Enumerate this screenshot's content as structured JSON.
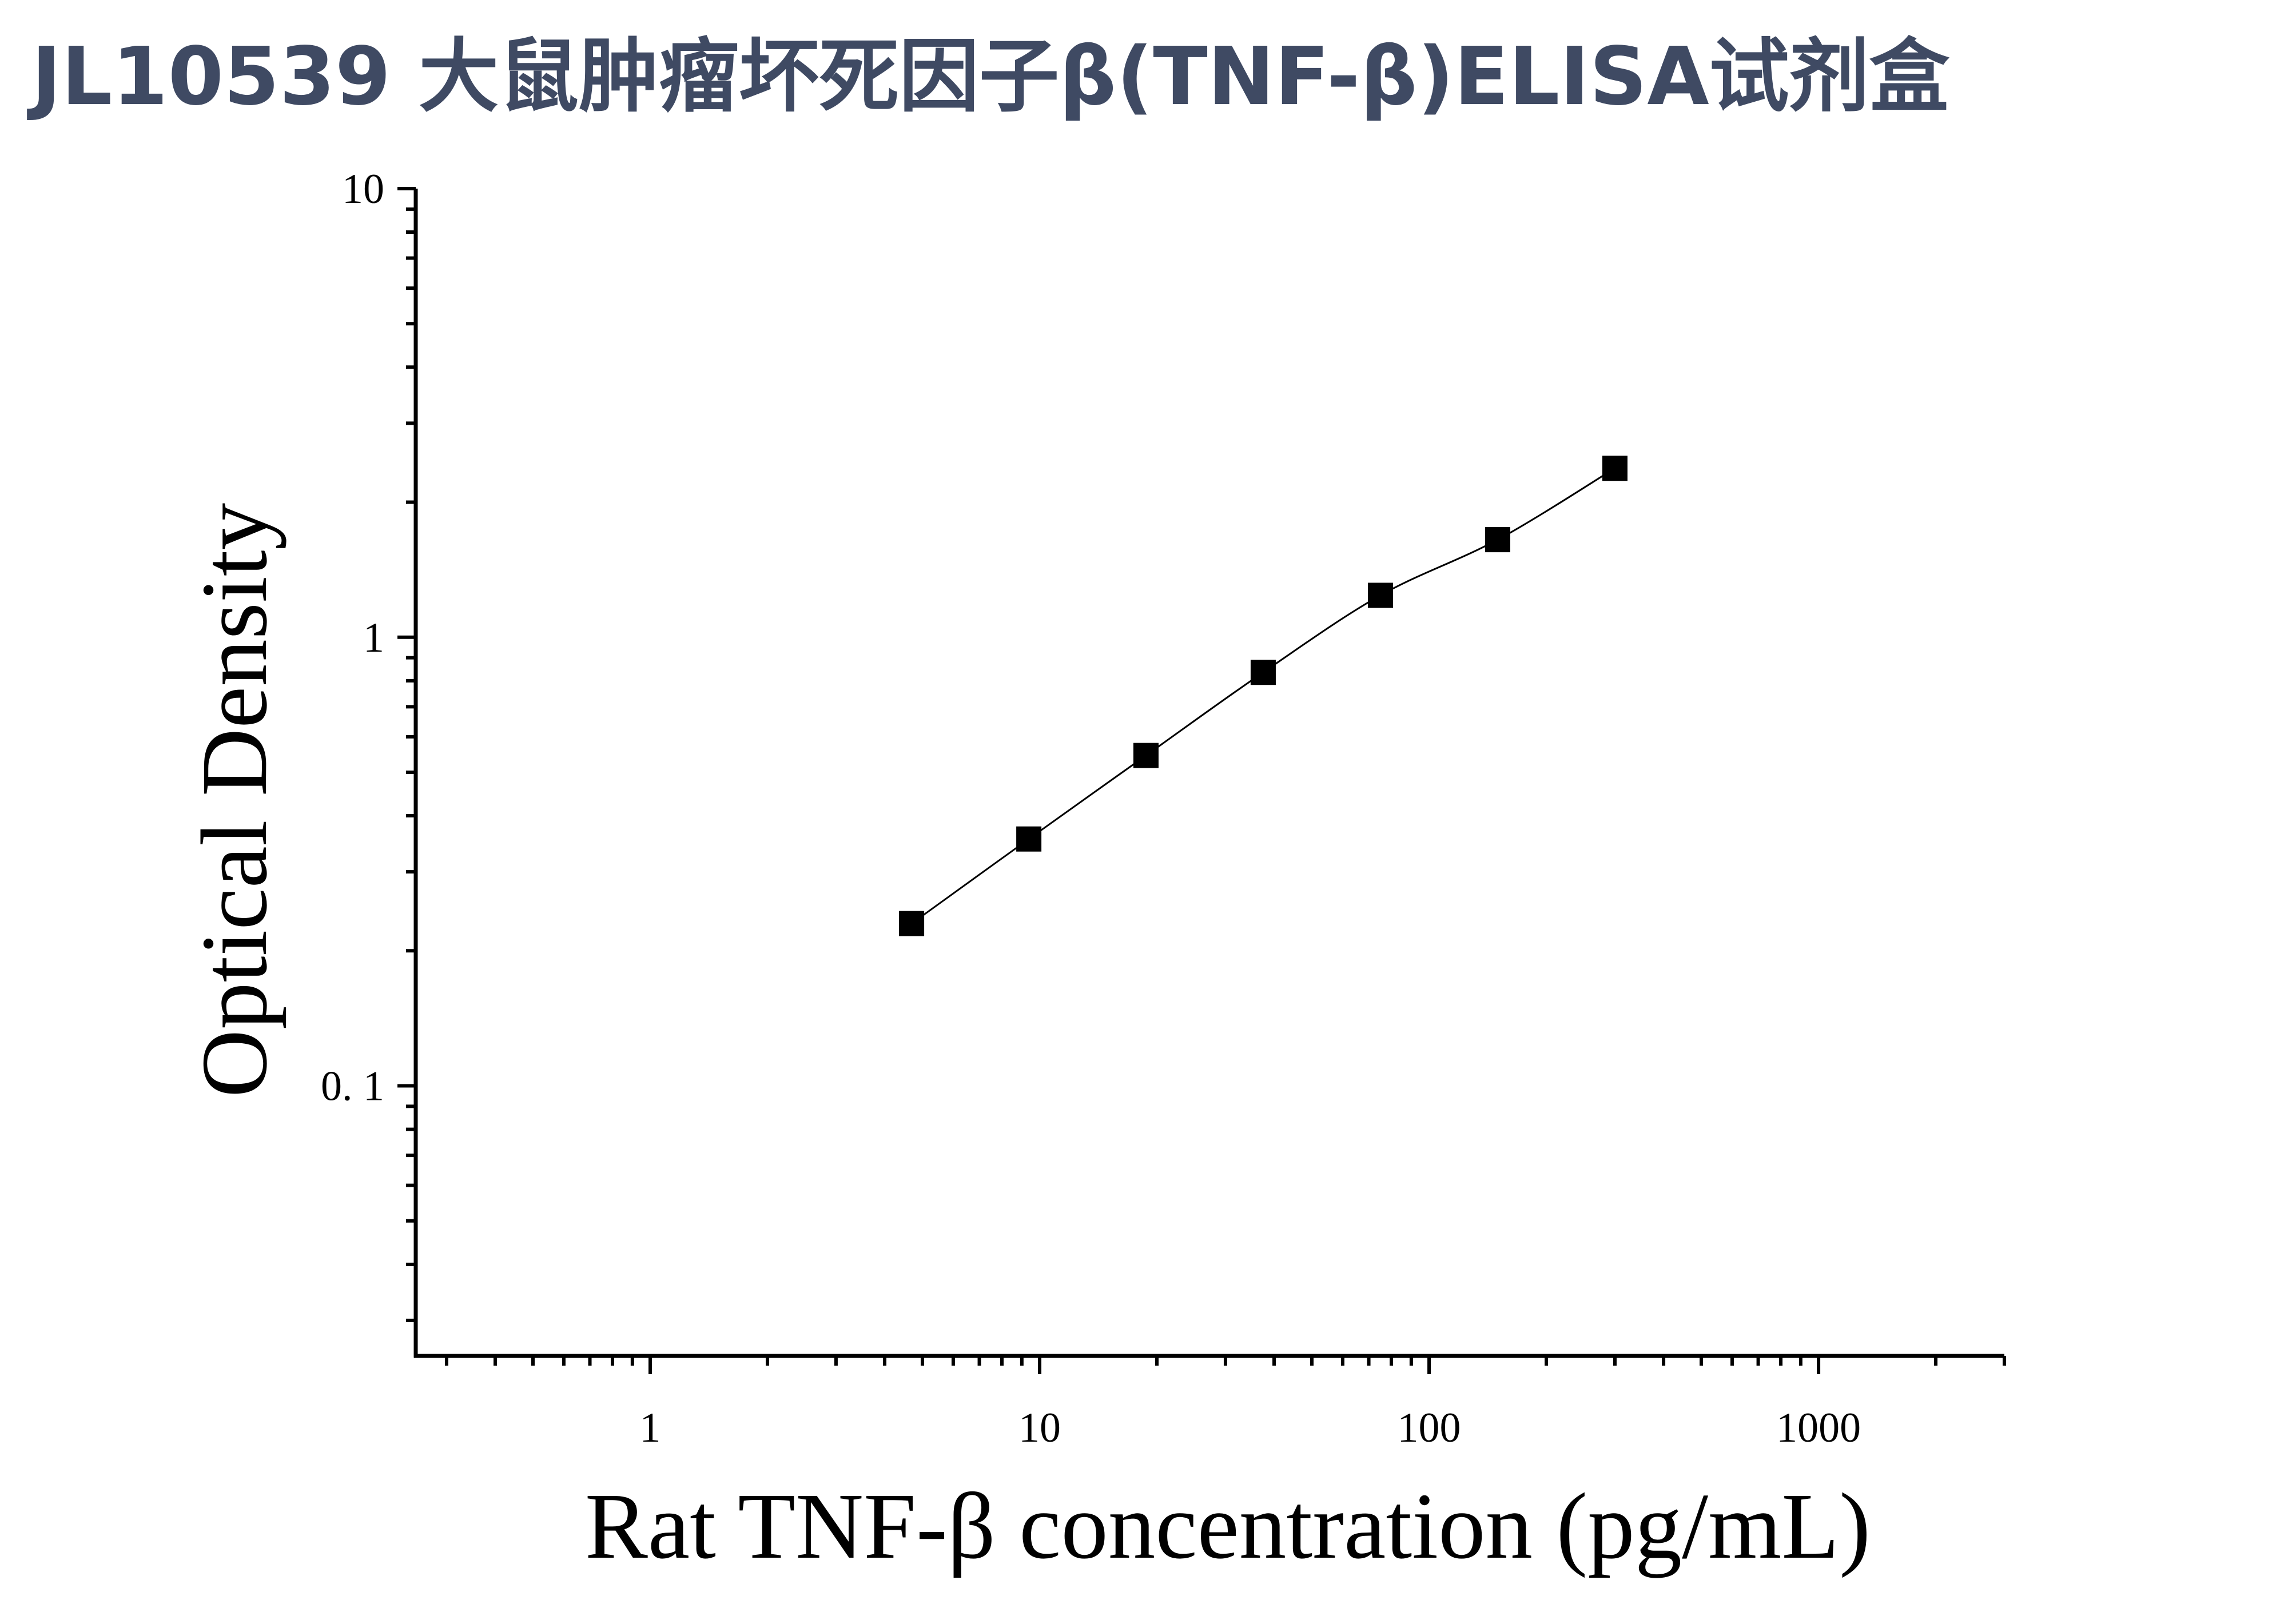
{
  "title": "JL10539 大鼠肿瘤坏死因子β(TNF-β)ELISA试剂盒",
  "colors": {
    "title": "#3f4a63",
    "axis": "#000000",
    "marker": "#000000",
    "line": "#000000"
  },
  "chart_data": {
    "type": "scatter",
    "xlabel": "Rat TNF-β concentration (pg/mL)",
    "ylabel": "Optical Density",
    "xscale": "log",
    "yscale": "log",
    "xlim": [
      0.25,
      3000
    ],
    "ylim": [
      0.025,
      10
    ],
    "x_ticks": [
      {
        "value": 1,
        "label": "1"
      },
      {
        "value": 10,
        "label": "10"
      },
      {
        "value": 100,
        "label": "100"
      },
      {
        "value": 1000,
        "label": "1000"
      }
    ],
    "y_ticks": [
      {
        "value": 0.1,
        "label": "0. 1"
      },
      {
        "value": 1,
        "label": "1"
      },
      {
        "value": 10,
        "label": "10"
      }
    ],
    "grid": false,
    "legend": "none",
    "marker": "square",
    "fit_line": true,
    "series": [
      {
        "x": [
          4.69,
          9.38,
          18.75,
          37.5,
          75,
          150,
          300
        ],
        "y": [
          0.23,
          0.355,
          0.545,
          0.835,
          1.24,
          1.65,
          2.38
        ]
      }
    ]
  }
}
